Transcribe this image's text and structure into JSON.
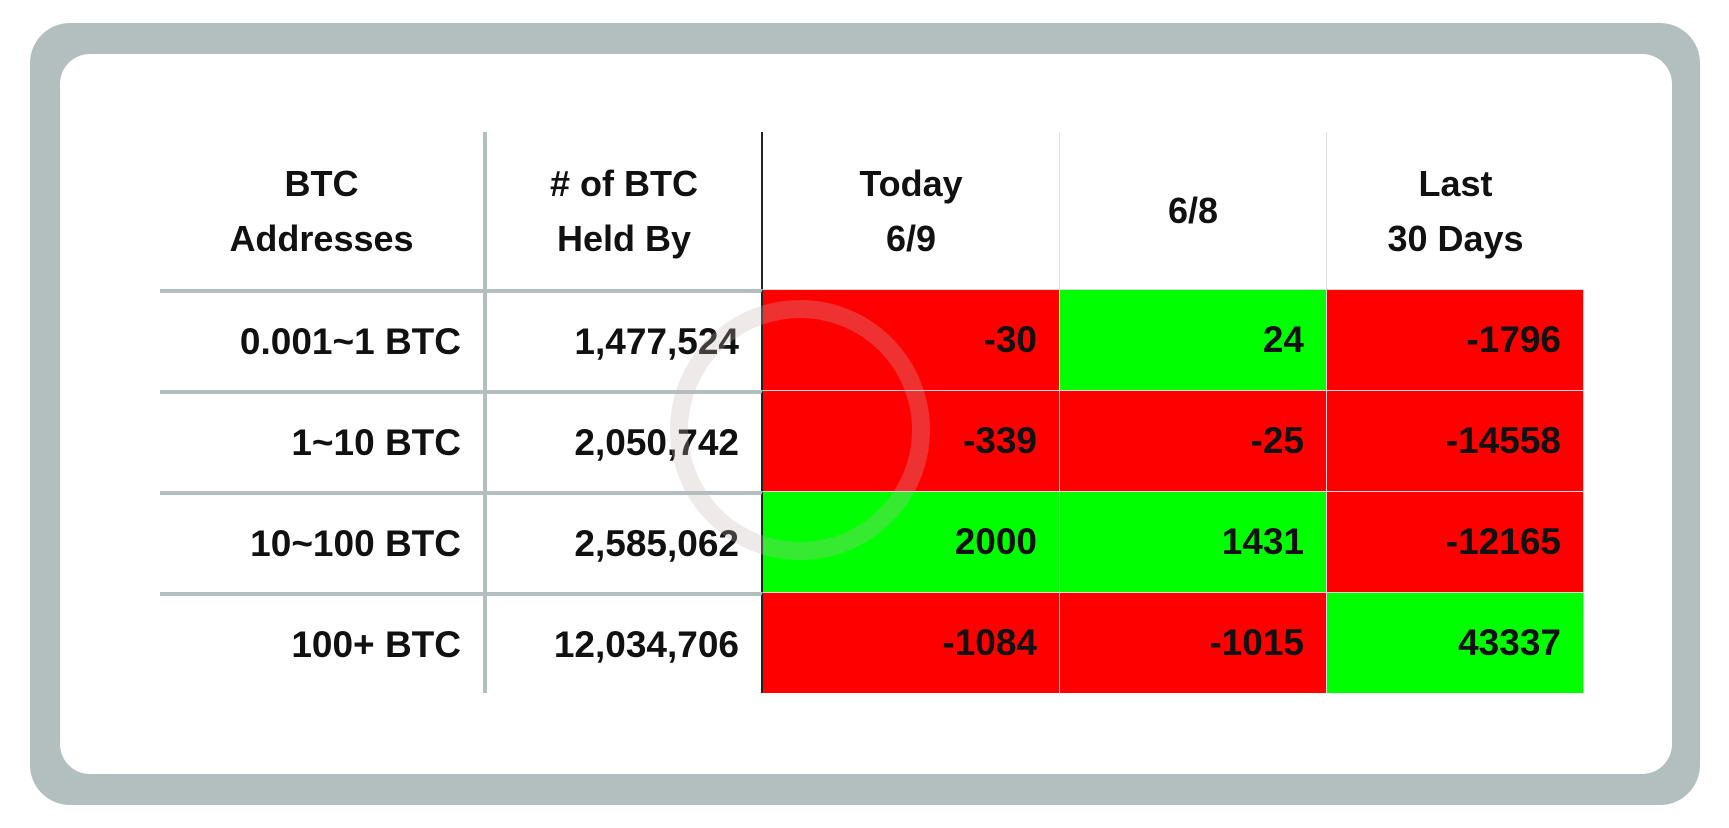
{
  "colors": {
    "frame": "#b3bfbf",
    "negative": "#ff0000",
    "positive": "#00ff00"
  },
  "chart_data": {
    "type": "table",
    "columns": [
      [
        "BTC",
        "Addresses"
      ],
      [
        "# of BTC",
        "Held By"
      ],
      [
        "Today",
        "6/9"
      ],
      [
        "6/8"
      ],
      [
        "Last",
        "30 Days"
      ]
    ],
    "rows": [
      {
        "range": "0.001~1 BTC",
        "held": "1,477,524",
        "values": [
          -30,
          24,
          -1796
        ]
      },
      {
        "range": "1~10 BTC",
        "held": "2,050,742",
        "values": [
          -339,
          -25,
          -14558
        ]
      },
      {
        "range": "10~100 BTC",
        "held": "2,585,062",
        "values": [
          2000,
          1431,
          -12165
        ]
      },
      {
        "range": "100+ BTC",
        "held": "12,034,706",
        "values": [
          -1084,
          -1015,
          43337
        ]
      }
    ]
  }
}
